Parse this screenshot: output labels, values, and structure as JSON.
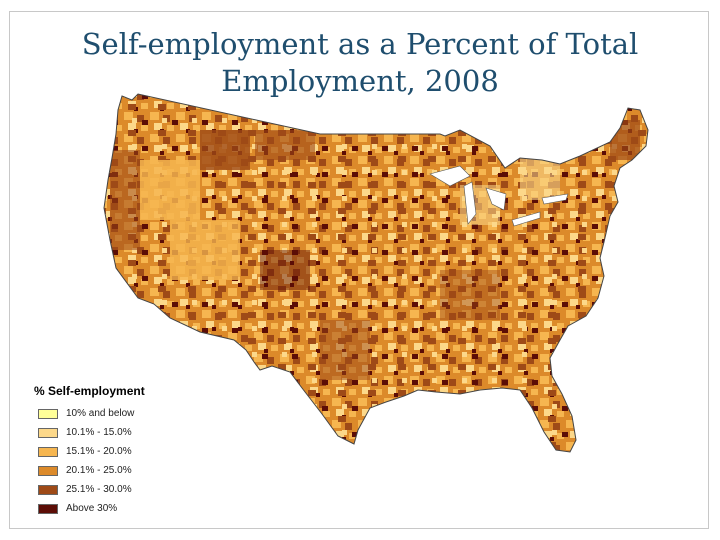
{
  "slide": {
    "title_line1": "Self-employment as a Percent of Total",
    "title_line2": "Employment, 2008"
  },
  "legend": {
    "title": "% Self-employment",
    "items": [
      {
        "label": "10% and below",
        "color": "#ffff99"
      },
      {
        "label": "10.1% - 15.0%",
        "color": "#fcd88a"
      },
      {
        "label": "15.1% - 20.0%",
        "color": "#f6b650"
      },
      {
        "label": "20.1% - 25.0%",
        "color": "#dc8a2a"
      },
      {
        "label": "25.1% - 30.0%",
        "color": "#9e4a17"
      },
      {
        "label": "Above 30%",
        "color": "#5c0d06"
      }
    ]
  }
}
